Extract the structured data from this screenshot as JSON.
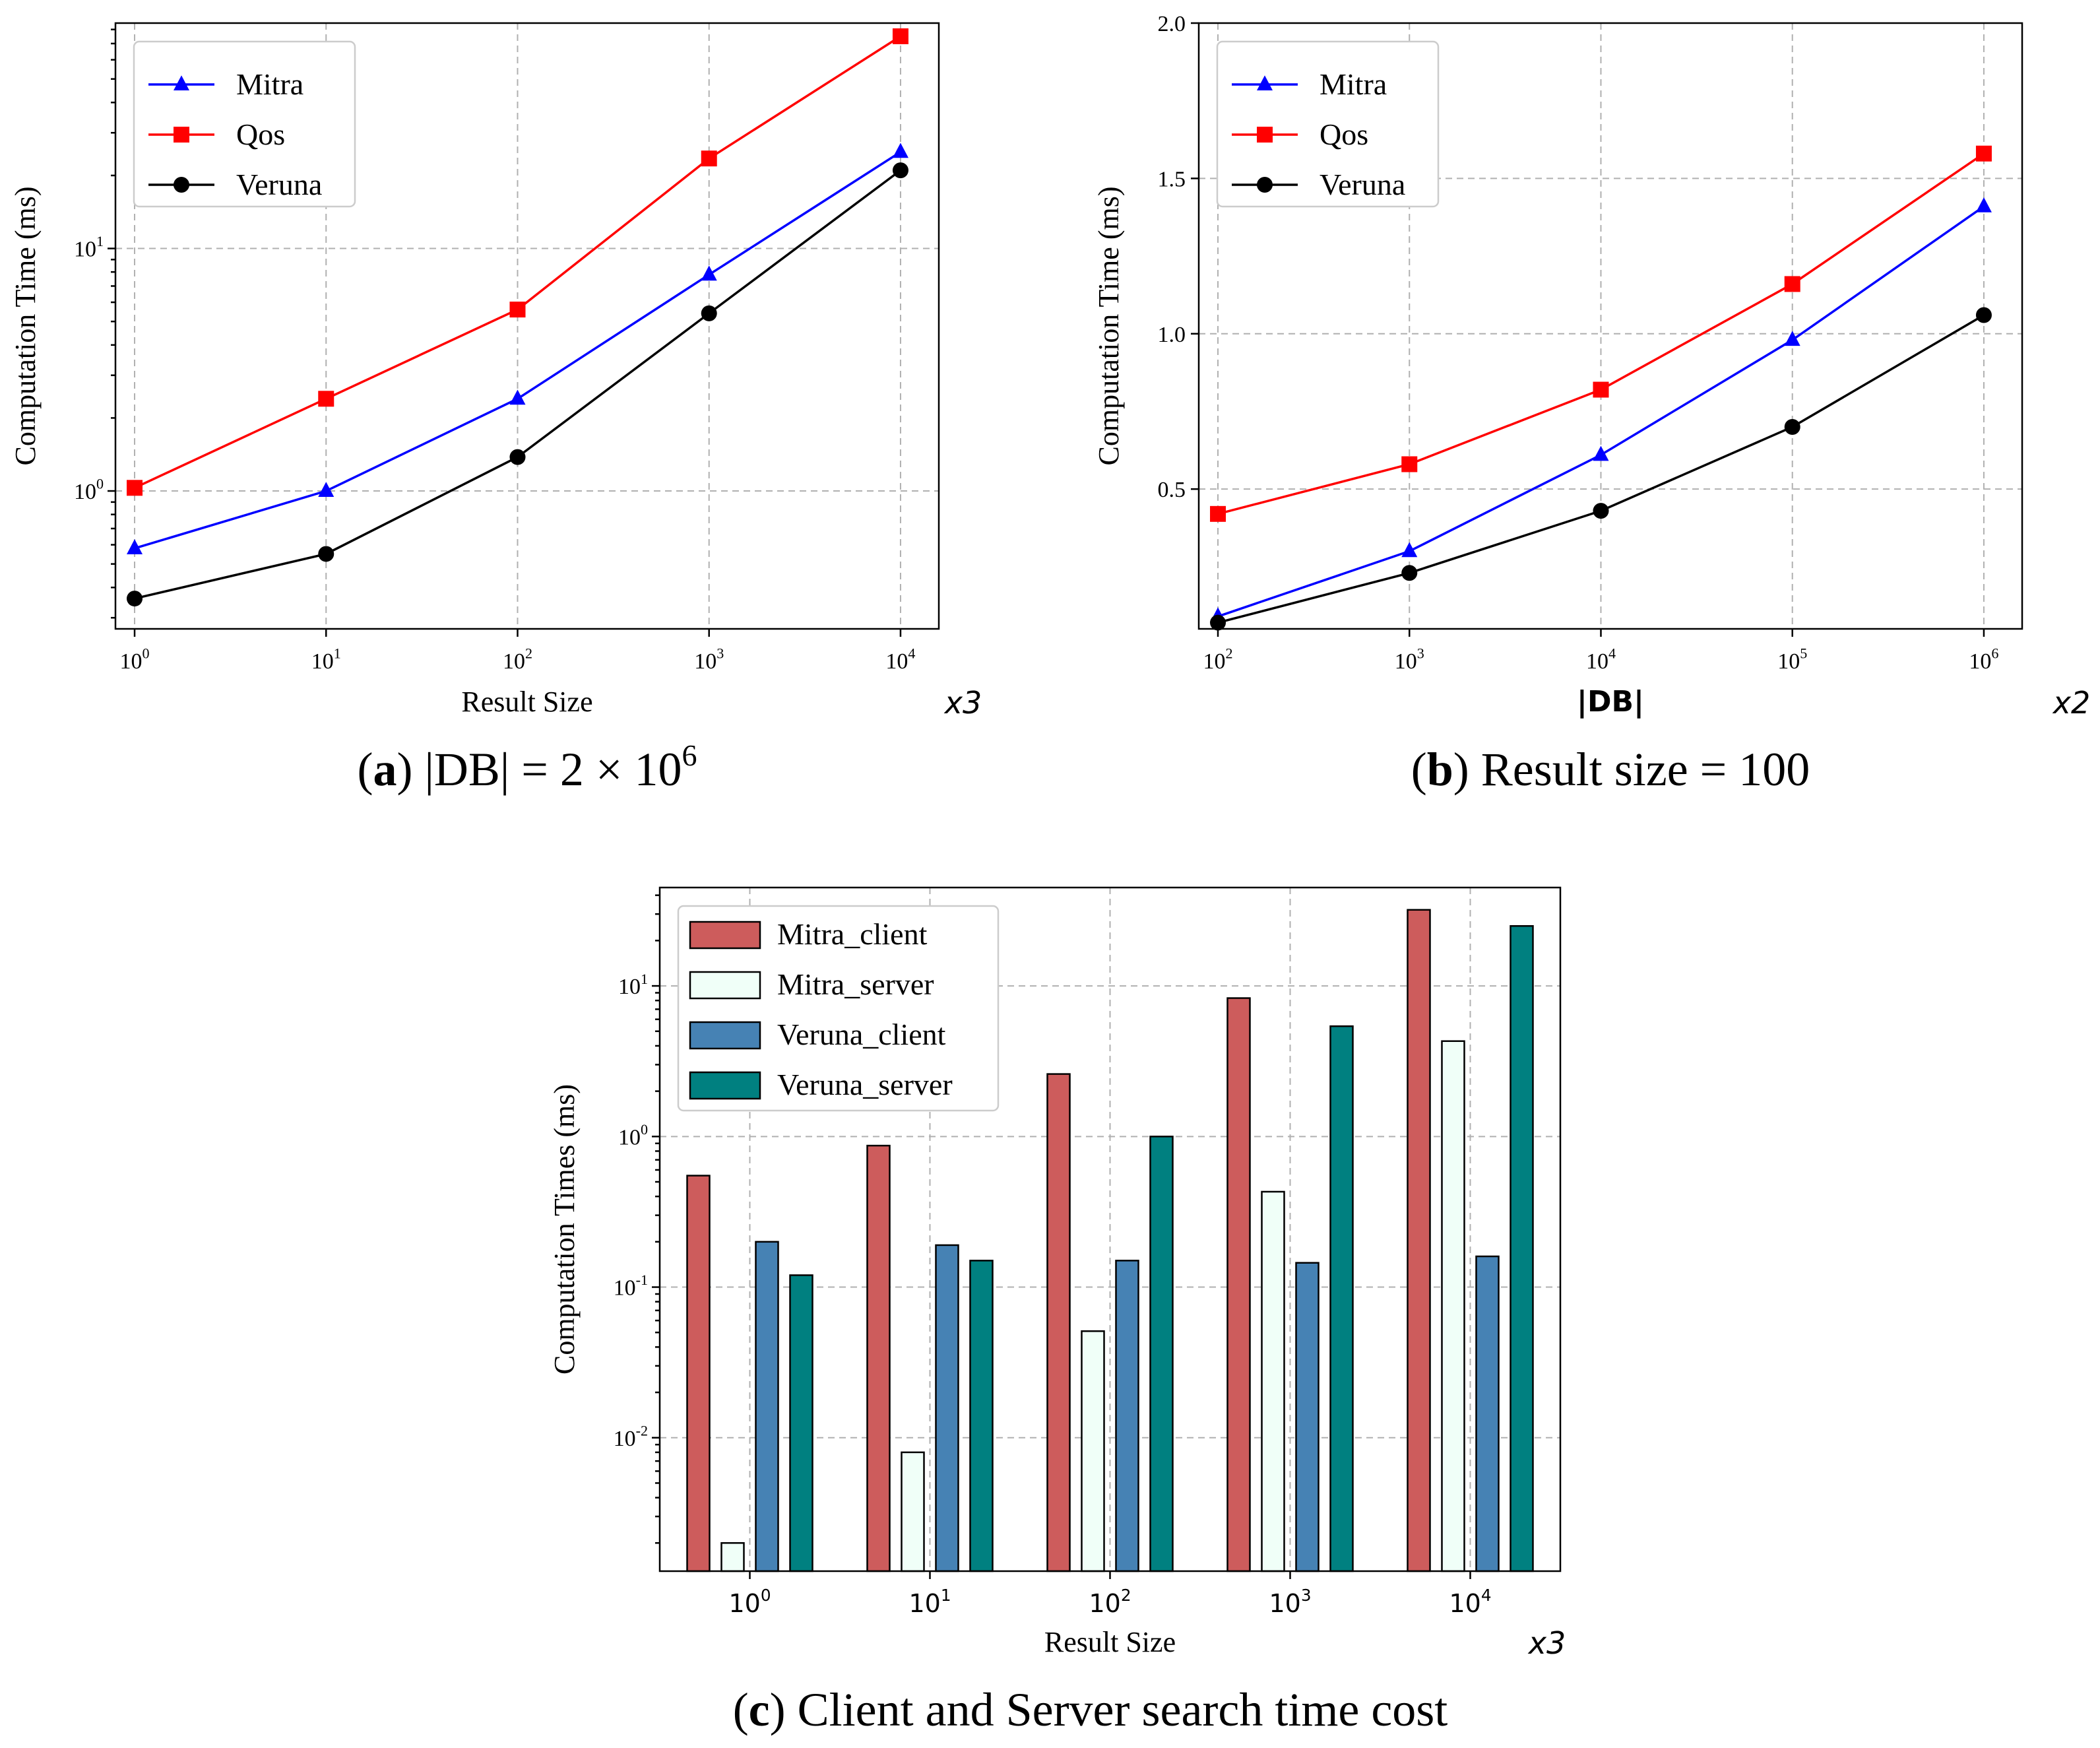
{
  "chart_data": [
    {
      "id": "a",
      "type": "line",
      "yscale": "log",
      "caption_letter": "a",
      "caption_text": "|DB| = 2 × 10",
      "caption_sup": "6",
      "xlabel": "Result Size",
      "ylabel": "Computation Time (ms)",
      "x_multiplier": "x3",
      "x": [
        0,
        1,
        2,
        3,
        4
      ],
      "x_tick_labels": [
        {
          "base": "10",
          "exp": "0"
        },
        {
          "base": "10",
          "exp": "1"
        },
        {
          "base": "10",
          "exp": "2"
        },
        {
          "base": "10",
          "exp": "3"
        },
        {
          "base": "10",
          "exp": "4"
        }
      ],
      "y_ticks": [
        {
          "value": 1,
          "base": "10",
          "exp": "0"
        },
        {
          "value": 10,
          "base": "10",
          "exp": "1"
        }
      ],
      "ylim": [
        0.27,
        85
      ],
      "xlim": [
        -0.1,
        4.2
      ],
      "legend": "top-left",
      "series": [
        {
          "name": "Mitra",
          "color": "#0000ff",
          "marker": "triangle",
          "values": [
            0.58,
            1.0,
            2.4,
            7.8,
            25
          ]
        },
        {
          "name": "Qos",
          "color": "#ff0000",
          "marker": "square",
          "values": [
            1.03,
            2.4,
            5.6,
            23.5,
            75
          ]
        },
        {
          "name": "Veruna",
          "color": "#000000",
          "marker": "circle",
          "values": [
            0.36,
            0.55,
            1.38,
            5.4,
            21
          ]
        }
      ]
    },
    {
      "id": "b",
      "type": "line",
      "yscale": "linear",
      "caption_letter": "b",
      "caption_text": "Result size = 100",
      "xlabel": "|DB|",
      "ylabel": "Computation Time (ms)",
      "x_multiplier": "x2",
      "x": [
        0,
        1,
        2,
        3,
        4
      ],
      "x_tick_labels": [
        {
          "base": "10",
          "exp": "2"
        },
        {
          "base": "10",
          "exp": "3"
        },
        {
          "base": "10",
          "exp": "4"
        },
        {
          "base": "10",
          "exp": "5"
        },
        {
          "base": "10",
          "exp": "6"
        }
      ],
      "y_ticks": [
        {
          "value": 0.5,
          "label": "0.5"
        },
        {
          "value": 1.0,
          "label": "1.0"
        },
        {
          "value": 1.5,
          "label": "1.5"
        },
        {
          "value": 2.0,
          "label": "2.0"
        }
      ],
      "ylim": [
        0.05,
        2.0
      ],
      "xlim": [
        -0.1,
        4.2
      ],
      "legend": "top-left",
      "series": [
        {
          "name": "Mitra",
          "color": "#0000ff",
          "marker": "triangle",
          "values": [
            0.09,
            0.3,
            0.61,
            0.98,
            1.41
          ]
        },
        {
          "name": "Qos",
          "color": "#ff0000",
          "marker": "square",
          "values": [
            0.42,
            0.58,
            0.82,
            1.16,
            1.58
          ]
        },
        {
          "name": "Veruna",
          "color": "#000000",
          "marker": "circle",
          "values": [
            0.07,
            0.23,
            0.43,
            0.7,
            1.06
          ]
        }
      ]
    },
    {
      "id": "c",
      "type": "bar",
      "yscale": "log",
      "caption_letter": "c",
      "caption_text": "Client and Server search time cost",
      "xlabel": "Result Size",
      "ylabel": "Computation Times (ms)",
      "x_multiplier": "x3",
      "categories": [
        "10^0",
        "10^1",
        "10^2",
        "10^3",
        "10^4"
      ],
      "x_tick_labels": [
        {
          "base": "10",
          "exp": "0"
        },
        {
          "base": "10",
          "exp": "1"
        },
        {
          "base": "10",
          "exp": "2"
        },
        {
          "base": "10",
          "exp": "3"
        },
        {
          "base": "10",
          "exp": "4"
        }
      ],
      "y_ticks": [
        {
          "value": 0.01,
          "base": "10",
          "exp": "-2"
        },
        {
          "value": 0.1,
          "base": "10",
          "exp": "-1"
        },
        {
          "value": 1,
          "base": "10",
          "exp": "0"
        },
        {
          "value": 10,
          "base": "10",
          "exp": "1"
        }
      ],
      "ylim": [
        0.0013,
        45
      ],
      "legend": "top-left",
      "series": [
        {
          "name": "Mitra_client",
          "color": "#cd5c5c",
          "values": [
            0.55,
            0.87,
            2.6,
            8.3,
            32
          ]
        },
        {
          "name": "Mitra_server",
          "color": "#f0fff8",
          "values": [
            0.002,
            0.008,
            0.051,
            0.43,
            4.3
          ]
        },
        {
          "name": "Veruna_client",
          "color": "#4682b4",
          "values": [
            0.2,
            0.19,
            0.15,
            0.145,
            0.16
          ]
        },
        {
          "name": "Veruna_server",
          "color": "#008080",
          "values": [
            0.12,
            0.15,
            1.0,
            5.4,
            25
          ]
        }
      ]
    }
  ]
}
